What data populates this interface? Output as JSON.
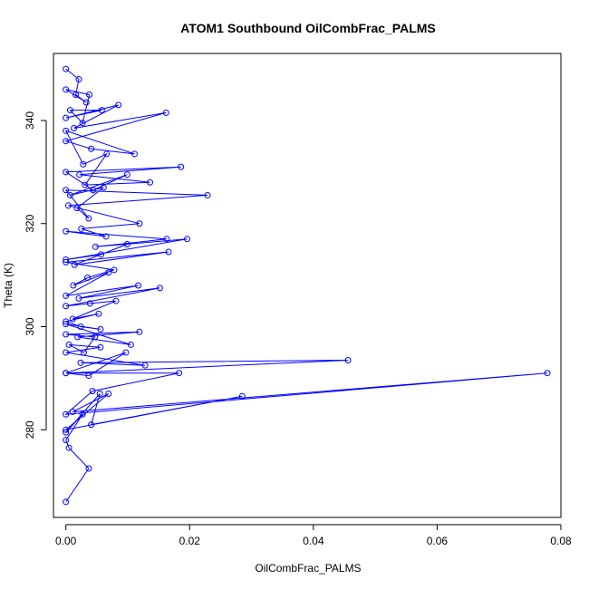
{
  "chart_data": {
    "type": "line",
    "title": "ATOM1 Southbound OilCombFrac_PALMS",
    "xlabel": "OilCombFrac_PALMS",
    "ylabel": "Theta (K)",
    "xlim": [
      -0.002,
      0.08
    ],
    "ylim": [
      263,
      353
    ],
    "x_ticks": [
      "0.00",
      "0.02",
      "0.04",
      "0.06",
      "0.08"
    ],
    "y_ticks": [
      "280",
      "300",
      "320",
      "340"
    ],
    "grid": false,
    "line_color": "#0000ff",
    "marker": "open-circle",
    "series": [
      {
        "x": [
          0.0,
          0.0021,
          0.0016,
          0.0033,
          0.0,
          0.0038,
          0.0027,
          0.0007,
          0.0058,
          0.0,
          0.0085,
          0.0013,
          0.0162,
          0.0,
          0.0041,
          0.0111,
          0.0,
          0.0028,
          0.0066,
          0.0031,
          0.0136,
          0.0022,
          0.0186,
          0.0,
          0.0044,
          0.0099,
          0.0007,
          0.0061,
          0.0018,
          0.0037,
          0.0,
          0.0229,
          0.0004,
          0.0119,
          0.0025,
          0.0065,
          0.0,
          0.0163,
          0.0048,
          0.0196,
          0.0,
          0.0057,
          0.0099,
          0.0014,
          0.0166,
          0.0,
          0.0078,
          0.0035,
          0.0012,
          0.0069,
          0.0,
          0.0117,
          0.0021,
          0.0152,
          0.0,
          0.0039,
          0.0081,
          0.0011,
          0.0053,
          0.0,
          0.0024,
          0.0056,
          0.0,
          0.0105,
          0.0019,
          0.0119,
          0.0,
          0.0047,
          0.0029,
          0.0005,
          0.0056,
          0.0,
          0.0128,
          0.0024,
          0.0456,
          0.0,
          0.0097,
          0.0037,
          0.0,
          0.0183,
          0.0043,
          0.0,
          0.0778,
          0.0011,
          0.0069,
          0.0,
          0.0285,
          0.0041,
          0.0055,
          0.0,
          0.0027,
          0.0,
          0.0005,
          0.0037,
          0.0
        ],
        "y": [
          350.0,
          348.0,
          345.0,
          343.5,
          346.0,
          345.0,
          339.5,
          342.0,
          342.0,
          340.5,
          343.0,
          338.5,
          341.5,
          336.0,
          334.5,
          333.5,
          338.0,
          331.5,
          333.5,
          327.5,
          328.0,
          329.5,
          331.0,
          330.0,
          326.5,
          329.5,
          325.5,
          327.0,
          323.0,
          321.0,
          326.5,
          325.5,
          323.5,
          320.0,
          319.0,
          317.5,
          318.5,
          317.0,
          315.5,
          317.0,
          313.0,
          314.0,
          316.0,
          312.0,
          314.5,
          312.5,
          311.0,
          309.5,
          308.0,
          310.5,
          306.0,
          308.0,
          305.5,
          307.5,
          304.0,
          304.5,
          305.0,
          301.5,
          302.5,
          301.0,
          300.0,
          299.5,
          300.5,
          296.5,
          298.0,
          299.0,
          298.5,
          298.0,
          295.0,
          296.5,
          296.0,
          295.0,
          292.5,
          293.0,
          293.5,
          291.0,
          295.0,
          290.5,
          291.0,
          291.0,
          287.5,
          283.0,
          291.0,
          283.5,
          287.0,
          280.0,
          286.5,
          281.0,
          287.0,
          279.5,
          283.0,
          278.0,
          276.5,
          272.5,
          266.0
        ]
      }
    ]
  }
}
